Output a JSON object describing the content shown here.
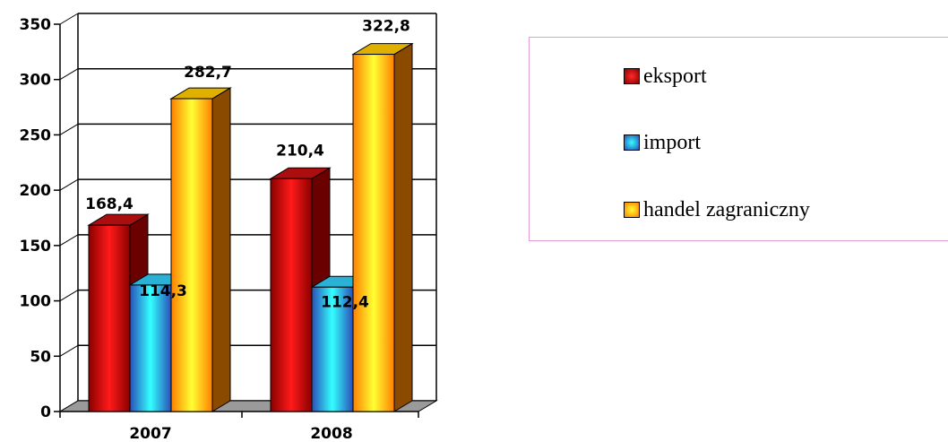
{
  "chart_data": {
    "type": "bar",
    "categories": [
      "2007",
      "2008"
    ],
    "series": [
      {
        "name": "eksport",
        "values": [
          168.4,
          210.4
        ],
        "labels": [
          "168,4",
          "210,4"
        ],
        "color": "#cc0000"
      },
      {
        "name": "import",
        "values": [
          114.3,
          112.4
        ],
        "labels": [
          "114,3",
          "112,4"
        ],
        "color": "#33ccee"
      },
      {
        "name": "handel zagraniczny",
        "values": [
          282.7,
          322.8
        ],
        "labels": [
          "282,7",
          "322,8"
        ],
        "color": "#ffaa00"
      }
    ],
    "ylim": [
      0,
      350
    ],
    "yticks": [
      0,
      50,
      100,
      150,
      200,
      250,
      300,
      350
    ],
    "grid": true,
    "legend": "right",
    "title": "",
    "xlabel": "",
    "ylabel": ""
  }
}
